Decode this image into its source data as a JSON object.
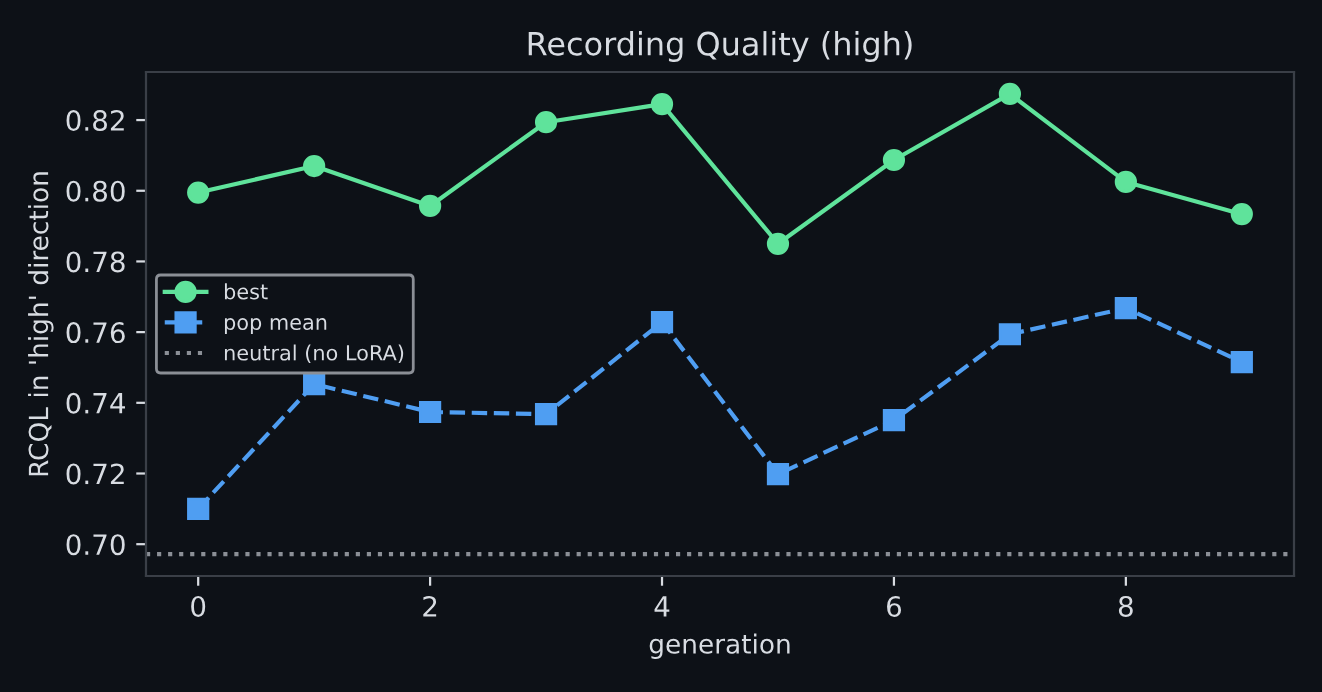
{
  "chart_data": {
    "type": "line",
    "title": "Recording Quality (high)",
    "xlabel": "generation",
    "ylabel": "RCQL in 'high' direction",
    "x": [
      0,
      1,
      2,
      3,
      4,
      5,
      6,
      7,
      8,
      9
    ],
    "series": [
      {
        "name": "best",
        "color": "#5fe39b",
        "marker": "circle",
        "line_style": "solid",
        "values": [
          0.7995,
          0.807,
          0.7957,
          0.8194,
          0.8245,
          0.785,
          0.8087,
          0.8274,
          0.8025,
          0.7934
        ]
      },
      {
        "name": "pop mean",
        "color": "#4f9ef2",
        "marker": "square",
        "line_style": "dashed",
        "values": [
          0.71,
          0.7453,
          0.7374,
          0.7368,
          0.7628,
          0.7198,
          0.7351,
          0.7594,
          0.7668,
          0.7515
        ]
      }
    ],
    "ref_lines": [
      {
        "axis": "y",
        "value": 0.6972,
        "label": "neutral (no LoRA)",
        "color": "#8b8f96",
        "line_style": "dotted"
      }
    ],
    "xlim": [
      -0.45,
      9.45
    ],
    "ylim": [
      0.691,
      0.8336
    ],
    "xticks": [
      0,
      2,
      4,
      6,
      8
    ],
    "yticks": [
      {
        "value": 0.7,
        "label": "0.70"
      },
      {
        "value": 0.72,
        "label": "0.72"
      },
      {
        "value": 0.74,
        "label": "0.74"
      },
      {
        "value": 0.76,
        "label": "0.76"
      },
      {
        "value": 0.78,
        "label": "0.78"
      },
      {
        "value": 0.8,
        "label": "0.80"
      },
      {
        "value": 0.82,
        "label": "0.82"
      }
    ],
    "grid": false,
    "legend": "left"
  }
}
